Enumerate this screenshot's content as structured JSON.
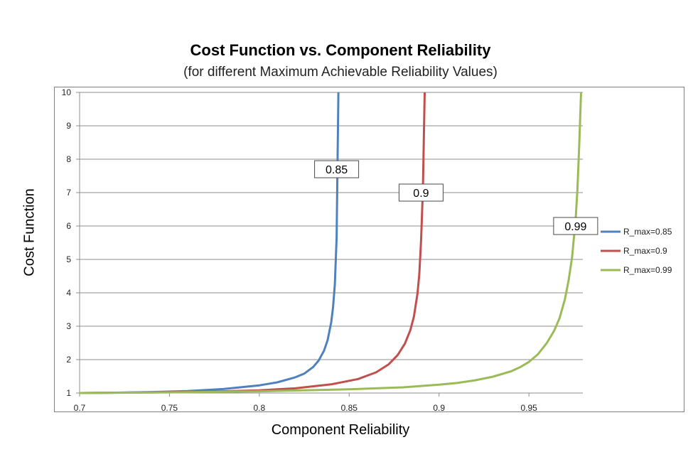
{
  "chart_data": {
    "type": "line",
    "title": "Cost Function vs. Component Reliability",
    "subtitle": "(for different Maximum Achievable Reliability Values)",
    "xlabel": "Component Reliability",
    "ylabel": "Cost Function",
    "xlim": [
      0.7,
      0.98
    ],
    "ylim": [
      1,
      10
    ],
    "x_ticks": [
      "0.7",
      "0.75",
      "0.8",
      "0.85",
      "0.9",
      "0.95"
    ],
    "y_ticks": [
      "1",
      "2",
      "3",
      "4",
      "5",
      "6",
      "7",
      "8",
      "9",
      "10"
    ],
    "grid": "horizontal",
    "legend_position": "right",
    "series": [
      {
        "name": "R_max=0.85",
        "color": "#4f81bd",
        "callout": "0.85",
        "callout_at": [
          0.843,
          7.7
        ],
        "x": [
          0.7,
          0.72,
          0.74,
          0.76,
          0.78,
          0.8,
          0.81,
          0.82,
          0.825,
          0.83,
          0.833,
          0.836,
          0.838,
          0.84,
          0.841,
          0.842,
          0.843,
          0.844
        ],
        "y": [
          1.0,
          1.01,
          1.03,
          1.06,
          1.12,
          1.23,
          1.32,
          1.47,
          1.58,
          1.78,
          1.97,
          2.27,
          2.58,
          3.12,
          3.55,
          4.25,
          5.65,
          10.0
        ]
      },
      {
        "name": "R_max=0.9",
        "color": "#c0504d",
        "callout": "0.9",
        "callout_at": [
          0.89,
          7.0
        ],
        "x": [
          0.7,
          0.74,
          0.78,
          0.8,
          0.82,
          0.84,
          0.855,
          0.865,
          0.872,
          0.877,
          0.881,
          0.884,
          0.886,
          0.888,
          0.889,
          0.89,
          0.891,
          0.892
        ],
        "y": [
          1.0,
          1.02,
          1.05,
          1.08,
          1.14,
          1.26,
          1.42,
          1.62,
          1.86,
          2.14,
          2.48,
          2.88,
          3.28,
          3.98,
          4.55,
          5.55,
          7.1,
          10.0
        ]
      },
      {
        "name": "R_max=0.99",
        "color": "#9bbb59",
        "callout": "0.99",
        "callout_at": [
          0.976,
          6.0
        ],
        "x": [
          0.7,
          0.75,
          0.8,
          0.85,
          0.88,
          0.9,
          0.91,
          0.92,
          0.93,
          0.94,
          0.945,
          0.95,
          0.955,
          0.96,
          0.964,
          0.967,
          0.97,
          0.972,
          0.974,
          0.976,
          0.977,
          0.978,
          0.979
        ],
        "y": [
          1.0,
          1.02,
          1.05,
          1.11,
          1.17,
          1.25,
          1.3,
          1.38,
          1.49,
          1.65,
          1.77,
          1.93,
          2.16,
          2.5,
          2.86,
          3.23,
          3.8,
          4.35,
          5.05,
          6.2,
          7.1,
          8.4,
          10.0
        ]
      }
    ]
  }
}
